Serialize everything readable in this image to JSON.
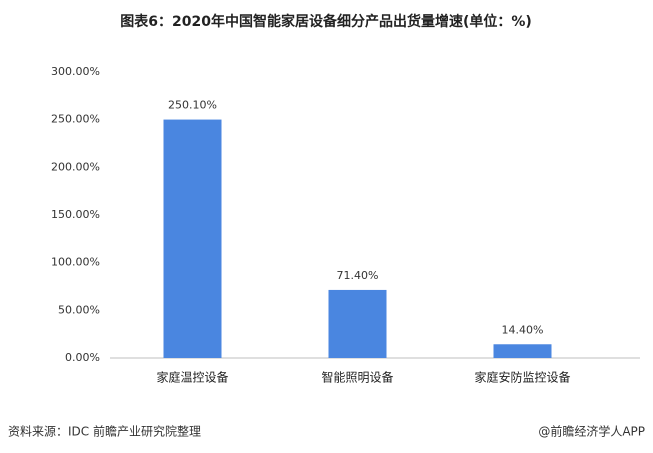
{
  "chart_data": {
    "type": "bar",
    "title": "图表6：2020年中国智能家居设备细分产品出货量增速(单位：%)",
    "categories": [
      "家庭温控设备",
      "智能照明设备",
      "家庭安防监控设备"
    ],
    "values": [
      250.1,
      71.4,
      14.4
    ],
    "value_labels": [
      "250.10%",
      "71.40%",
      "14.40%"
    ],
    "value_label_colors": [
      "#c00000",
      "#333333",
      "#333333"
    ],
    "color": "#4a86e0",
    "ylim": [
      0,
      300
    ],
    "yticks": [
      {
        "value": 0,
        "label": "0.00%"
      },
      {
        "value": 50,
        "label": "50.00%"
      },
      {
        "value": 100,
        "label": "100.00%"
      },
      {
        "value": 150,
        "label": "150.00%"
      },
      {
        "value": 200,
        "label": "200.00%"
      },
      {
        "value": 250,
        "label": "250.00%"
      },
      {
        "value": 300,
        "label": "300.00%"
      }
    ],
    "grid": false,
    "source": "资料来源：IDC 前瞻产业研究院整理",
    "credit": "@前瞻经济学人APP"
  }
}
